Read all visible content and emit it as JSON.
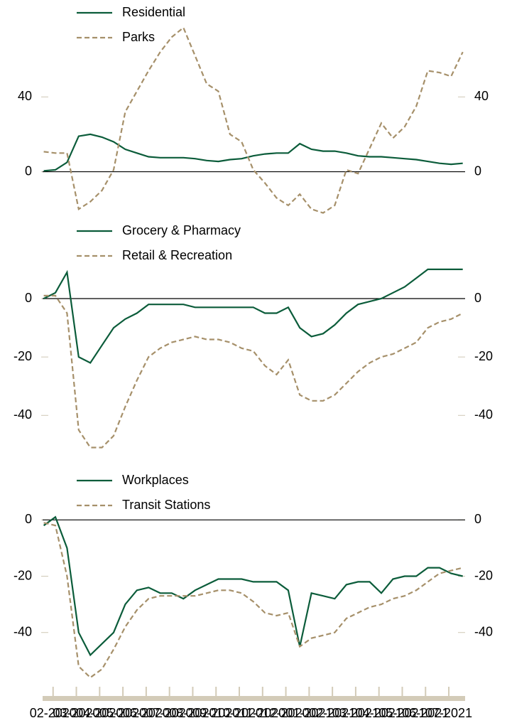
{
  "chart_data": [
    {
      "type": "line",
      "x": [
        -0.4,
        0.1,
        0.6,
        1.1,
        1.6,
        2.1,
        2.6,
        3.1,
        3.6,
        4.1,
        4.6,
        5.1,
        5.6,
        6.1,
        6.6,
        7.1,
        7.6,
        8.1,
        8.6,
        9.1,
        9.6,
        10.1,
        10.6,
        11.1,
        11.6,
        12.1,
        12.6,
        13.1,
        13.6,
        14.1,
        14.6,
        15.1,
        15.6,
        16.1,
        16.6,
        17.1,
        17.6
      ],
      "xlim": [
        -0.45,
        17.7
      ],
      "ylim": [
        -26,
        88
      ],
      "yticks": [
        0,
        40
      ],
      "series": [
        {
          "name": "Residential",
          "color": "#0b5c3a",
          "dash": false,
          "values": [
            0.5,
            1,
            5,
            19,
            20,
            18.5,
            16,
            12,
            10,
            8,
            7.5,
            7.5,
            7.5,
            7,
            6,
            5.5,
            6.5,
            7,
            8.5,
            9.5,
            10,
            10,
            15,
            12,
            11,
            11,
            10,
            8.5,
            8,
            8,
            7.5,
            7,
            6.5,
            5.5,
            4.5,
            4,
            4.5
          ]
        },
        {
          "name": "Parks",
          "color": "#a6906a",
          "dash": true,
          "values": [
            10.7,
            10,
            10,
            -20,
            -16,
            -10,
            1,
            32,
            43,
            54,
            64,
            72,
            77,
            62,
            47,
            43,
            20,
            16,
            1,
            -6,
            -14,
            -18,
            -12,
            -20,
            -22,
            -18,
            1,
            -1,
            12.5,
            26,
            18,
            24,
            35,
            54,
            53,
            51,
            64
          ]
        }
      ]
    },
    {
      "type": "line",
      "x": [
        -0.4,
        0.1,
        0.6,
        1.1,
        1.6,
        2.1,
        2.6,
        3.1,
        3.6,
        4.1,
        4.6,
        5.1,
        5.6,
        6.1,
        6.6,
        7.1,
        7.6,
        8.1,
        8.6,
        9.1,
        9.6,
        10.1,
        10.6,
        11.1,
        11.6,
        12.1,
        12.6,
        13.1,
        13.6,
        14.1,
        14.6,
        15.1,
        15.6,
        16.1,
        16.6,
        17.1,
        17.6
      ],
      "xlim": [
        -0.45,
        17.7
      ],
      "ylim": [
        -56,
        28
      ],
      "yticks": [
        -40,
        -20,
        0
      ],
      "series": [
        {
          "name": "Grocery & Pharmacy",
          "color": "#0b5c3a",
          "dash": false,
          "values": [
            0,
            2,
            9,
            -20,
            -22,
            -16,
            -10,
            -7,
            -5,
            -2,
            -2,
            -2,
            -2,
            -3,
            -3,
            -3,
            -3,
            -3,
            -3,
            -5,
            -5,
            -3,
            -10,
            -13,
            -12,
            -9,
            -5,
            -2,
            -1,
            0,
            2,
            4,
            7,
            10,
            10,
            10,
            10
          ]
        },
        {
          "name": "Retail & Recreation",
          "color": "#a6906a",
          "dash": true,
          "values": [
            1,
            1,
            -5,
            -45,
            -51,
            -51,
            -47,
            -37,
            -28,
            -20,
            -17,
            -15,
            -14,
            -13,
            -14,
            -14,
            -15,
            -17,
            -18,
            -23,
            -26,
            -21,
            -33,
            -35,
            -35,
            -33,
            -29,
            -25,
            -22,
            -20,
            -19,
            -17,
            -15,
            -10,
            -8,
            -7,
            -5
          ]
        }
      ]
    },
    {
      "type": "line",
      "x": [
        -0.4,
        0.1,
        0.6,
        1.1,
        1.6,
        2.1,
        2.6,
        3.1,
        3.6,
        4.1,
        4.6,
        5.1,
        5.6,
        6.1,
        6.6,
        7.1,
        7.6,
        8.1,
        8.6,
        9.1,
        9.6,
        10.1,
        10.6,
        11.1,
        11.6,
        12.1,
        12.6,
        13.1,
        13.6,
        14.1,
        14.6,
        15.1,
        15.6,
        16.1,
        16.6,
        17.1,
        17.6
      ],
      "xlim": [
        -0.45,
        17.7
      ],
      "xticks": [
        {
          "value": 0,
          "label": "02-2020"
        },
        {
          "value": 1,
          "label": "03-2020"
        },
        {
          "value": 2,
          "label": "04-2020"
        },
        {
          "value": 3,
          "label": "05-2020"
        },
        {
          "value": 4,
          "label": "06-2020"
        },
        {
          "value": 5,
          "label": "07-2020"
        },
        {
          "value": 6,
          "label": "08-2020"
        },
        {
          "value": 7,
          "label": "09-2020"
        },
        {
          "value": 8,
          "label": "10-2020"
        },
        {
          "value": 9,
          "label": "11-2020"
        },
        {
          "value": 10,
          "label": "12-2020"
        },
        {
          "value": 11,
          "label": "01-2021"
        },
        {
          "value": 12,
          "label": "02-2021"
        },
        {
          "value": 13,
          "label": "03-2021"
        },
        {
          "value": 14,
          "label": "04-2021"
        },
        {
          "value": 15,
          "label": "05-2021"
        },
        {
          "value": 16,
          "label": "06-2021"
        },
        {
          "value": 17,
          "label": "07-2021"
        }
      ],
      "ylim": [
        -59,
        18
      ],
      "yticks": [
        -40,
        -20,
        0
      ],
      "series": [
        {
          "name": "Workplaces",
          "color": "#0b5c3a",
          "dash": false,
          "values": [
            -2,
            1,
            -10,
            -40,
            -48,
            -44,
            -40,
            -30,
            -25,
            -24,
            -26,
            -26,
            -28,
            -25,
            -23,
            -21,
            -21,
            -21,
            -22,
            -22,
            -22,
            -25,
            -45,
            -26,
            -27,
            -28,
            -23,
            -22,
            -22,
            -26,
            -21,
            -20,
            -20,
            -17,
            -17,
            -19,
            -20
          ]
        },
        {
          "name": "Transit Stations",
          "color": "#a6906a",
          "dash": true,
          "values": [
            -1,
            -2,
            -20,
            -52,
            -56,
            -53,
            -46,
            -38,
            -32,
            -28,
            -27,
            -27,
            -27,
            -27,
            -26,
            -25,
            -25,
            -26,
            -29,
            -33,
            -34,
            -33,
            -45,
            -42,
            -41,
            -40,
            -35,
            -33,
            -31,
            -30,
            -28,
            -27,
            -25,
            -22,
            -19,
            -18,
            -17
          ]
        }
      ]
    }
  ]
}
